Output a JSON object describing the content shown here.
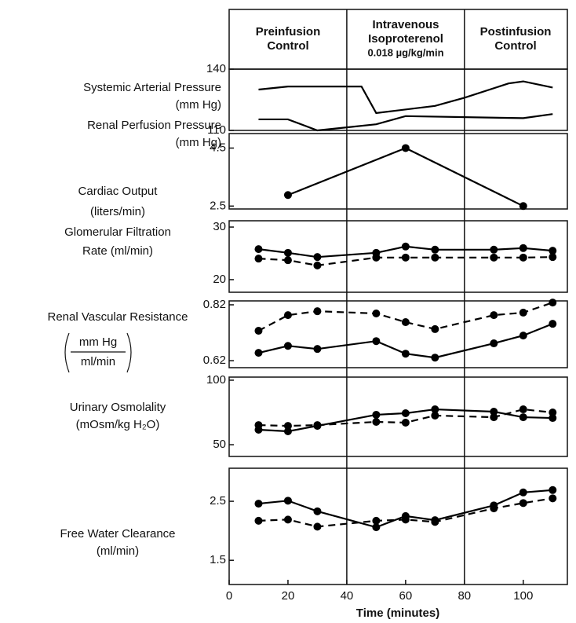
{
  "phases": [
    [
      "Preinfusion",
      "Control"
    ],
    [
      "Intravenous",
      "Isoproterenol",
      "0.018 µg/kg/min"
    ],
    [
      "Postinfusion",
      "Control"
    ]
  ],
  "phase_boundaries": [
    40,
    80
  ],
  "chart_data": [
    {
      "type": "line",
      "ylabel": [
        "Systemic Arterial Pressure",
        "(mm Hg)",
        "Renal Perfusion Pressure",
        "(mm Hg)"
      ],
      "ylim": [
        110,
        140
      ],
      "yticks": [
        110,
        140
      ],
      "series": [
        {
          "style": "solid",
          "markers": false,
          "color": "#000000",
          "x": [
            10,
            20,
            45,
            50,
            70,
            80,
            95,
            100,
            110
          ],
          "values": [
            130,
            131.5,
            131.5,
            118.5,
            122,
            126,
            133,
            134,
            131
          ]
        },
        {
          "style": "solid",
          "markers": false,
          "color": "#000000",
          "x": [
            10,
            20,
            30,
            40,
            50,
            60,
            100,
            110
          ],
          "values": [
            115.4,
            115.4,
            110,
            111.5,
            113,
            117,
            116,
            118
          ]
        }
      ]
    },
    {
      "type": "line",
      "ylabel": [
        "Cardiac Output",
        "(liters/min)"
      ],
      "ylim": [
        2.4,
        5.0
      ],
      "yticks": [
        2.5,
        4.5
      ],
      "series": [
        {
          "style": "solid",
          "markers": true,
          "color": "#000000",
          "x": [
            20,
            60,
            100
          ],
          "values": [
            2.88,
            4.5,
            2.5
          ]
        }
      ]
    },
    {
      "type": "line",
      "ylabel": [
        "Glomerular Filtration",
        "Rate (ml/min)"
      ],
      "ylim": [
        17.6,
        31.2
      ],
      "yticks": [
        20,
        30
      ],
      "x": [
        10,
        20,
        30,
        50,
        60,
        70,
        90,
        100,
        110
      ],
      "series": [
        {
          "style": "solid",
          "markers": true,
          "color": "#000000",
          "values": [
            25.8,
            25.1,
            24.3,
            25.1,
            26.3,
            25.7,
            25.7,
            26.0,
            25.5
          ]
        },
        {
          "style": "dashed",
          "markers": true,
          "color": "#000000",
          "values": [
            24.0,
            23.7,
            22.7,
            24.2,
            24.2,
            24.2,
            24.2,
            24.2,
            24.3
          ]
        }
      ]
    },
    {
      "type": "line",
      "ylabel": [
        "Renal Vascular Resistance"
      ],
      "ylabel_fraction": [
        "mm Hg",
        "ml/min"
      ],
      "ylim": [
        0.595,
        0.834
      ],
      "yticks": [
        0.62,
        0.82
      ],
      "x": [
        10,
        20,
        30,
        50,
        60,
        70,
        90,
        100,
        110
      ],
      "series": [
        {
          "style": "solid",
          "markers": true,
          "color": "#000000",
          "values": [
            0.648,
            0.673,
            0.662,
            0.69,
            0.645,
            0.631,
            0.682,
            0.71,
            0.752
          ]
        },
        {
          "style": "dashed",
          "markers": true,
          "color": "#000000",
          "values": [
            0.727,
            0.783,
            0.797,
            0.789,
            0.758,
            0.733,
            0.783,
            0.792,
            0.828
          ]
        }
      ]
    },
    {
      "type": "line",
      "ylabel": [
        "Urinary Osmolality",
        "(mOsm/kg H₂O)"
      ],
      "ylim": [
        40.9,
        102.4
      ],
      "yticks": [
        50,
        100
      ],
      "x": [
        10,
        20,
        30,
        50,
        60,
        70,
        90,
        100,
        110
      ],
      "series": [
        {
          "style": "solid",
          "markers": true,
          "color": "#000000",
          "values": [
            61.6,
            60.4,
            64.6,
            73.2,
            74.4,
            77.4,
            75.6,
            71.3,
            70.7
          ]
        },
        {
          "style": "dashed",
          "markers": true,
          "color": "#000000",
          "values": [
            65.2,
            64.6,
            65.2,
            67.7,
            67.1,
            72.6,
            71.3,
            77.4,
            75.0
          ]
        }
      ]
    },
    {
      "type": "line",
      "ylabel": [
        "Free Water Clearance",
        "(ml/min)"
      ],
      "ylim": [
        1.09,
        3.06
      ],
      "yticks": [
        1.5,
        2.5
      ],
      "x": [
        10,
        20,
        30,
        50,
        60,
        70,
        90,
        100,
        110
      ],
      "xlim": [
        0,
        115
      ],
      "xticks": [
        0,
        20,
        40,
        60,
        80,
        100
      ],
      "xlabel": "Time (minutes)",
      "series": [
        {
          "style": "solid",
          "markers": true,
          "color": "#000000",
          "values": [
            2.46,
            2.51,
            2.33,
            2.06,
            2.25,
            2.18,
            2.43,
            2.65,
            2.69
          ]
        },
        {
          "style": "dashed",
          "markers": true,
          "color": "#000000",
          "values": [
            2.17,
            2.19,
            2.07,
            2.17,
            2.19,
            2.15,
            2.38,
            2.47,
            2.55
          ]
        }
      ]
    }
  ]
}
